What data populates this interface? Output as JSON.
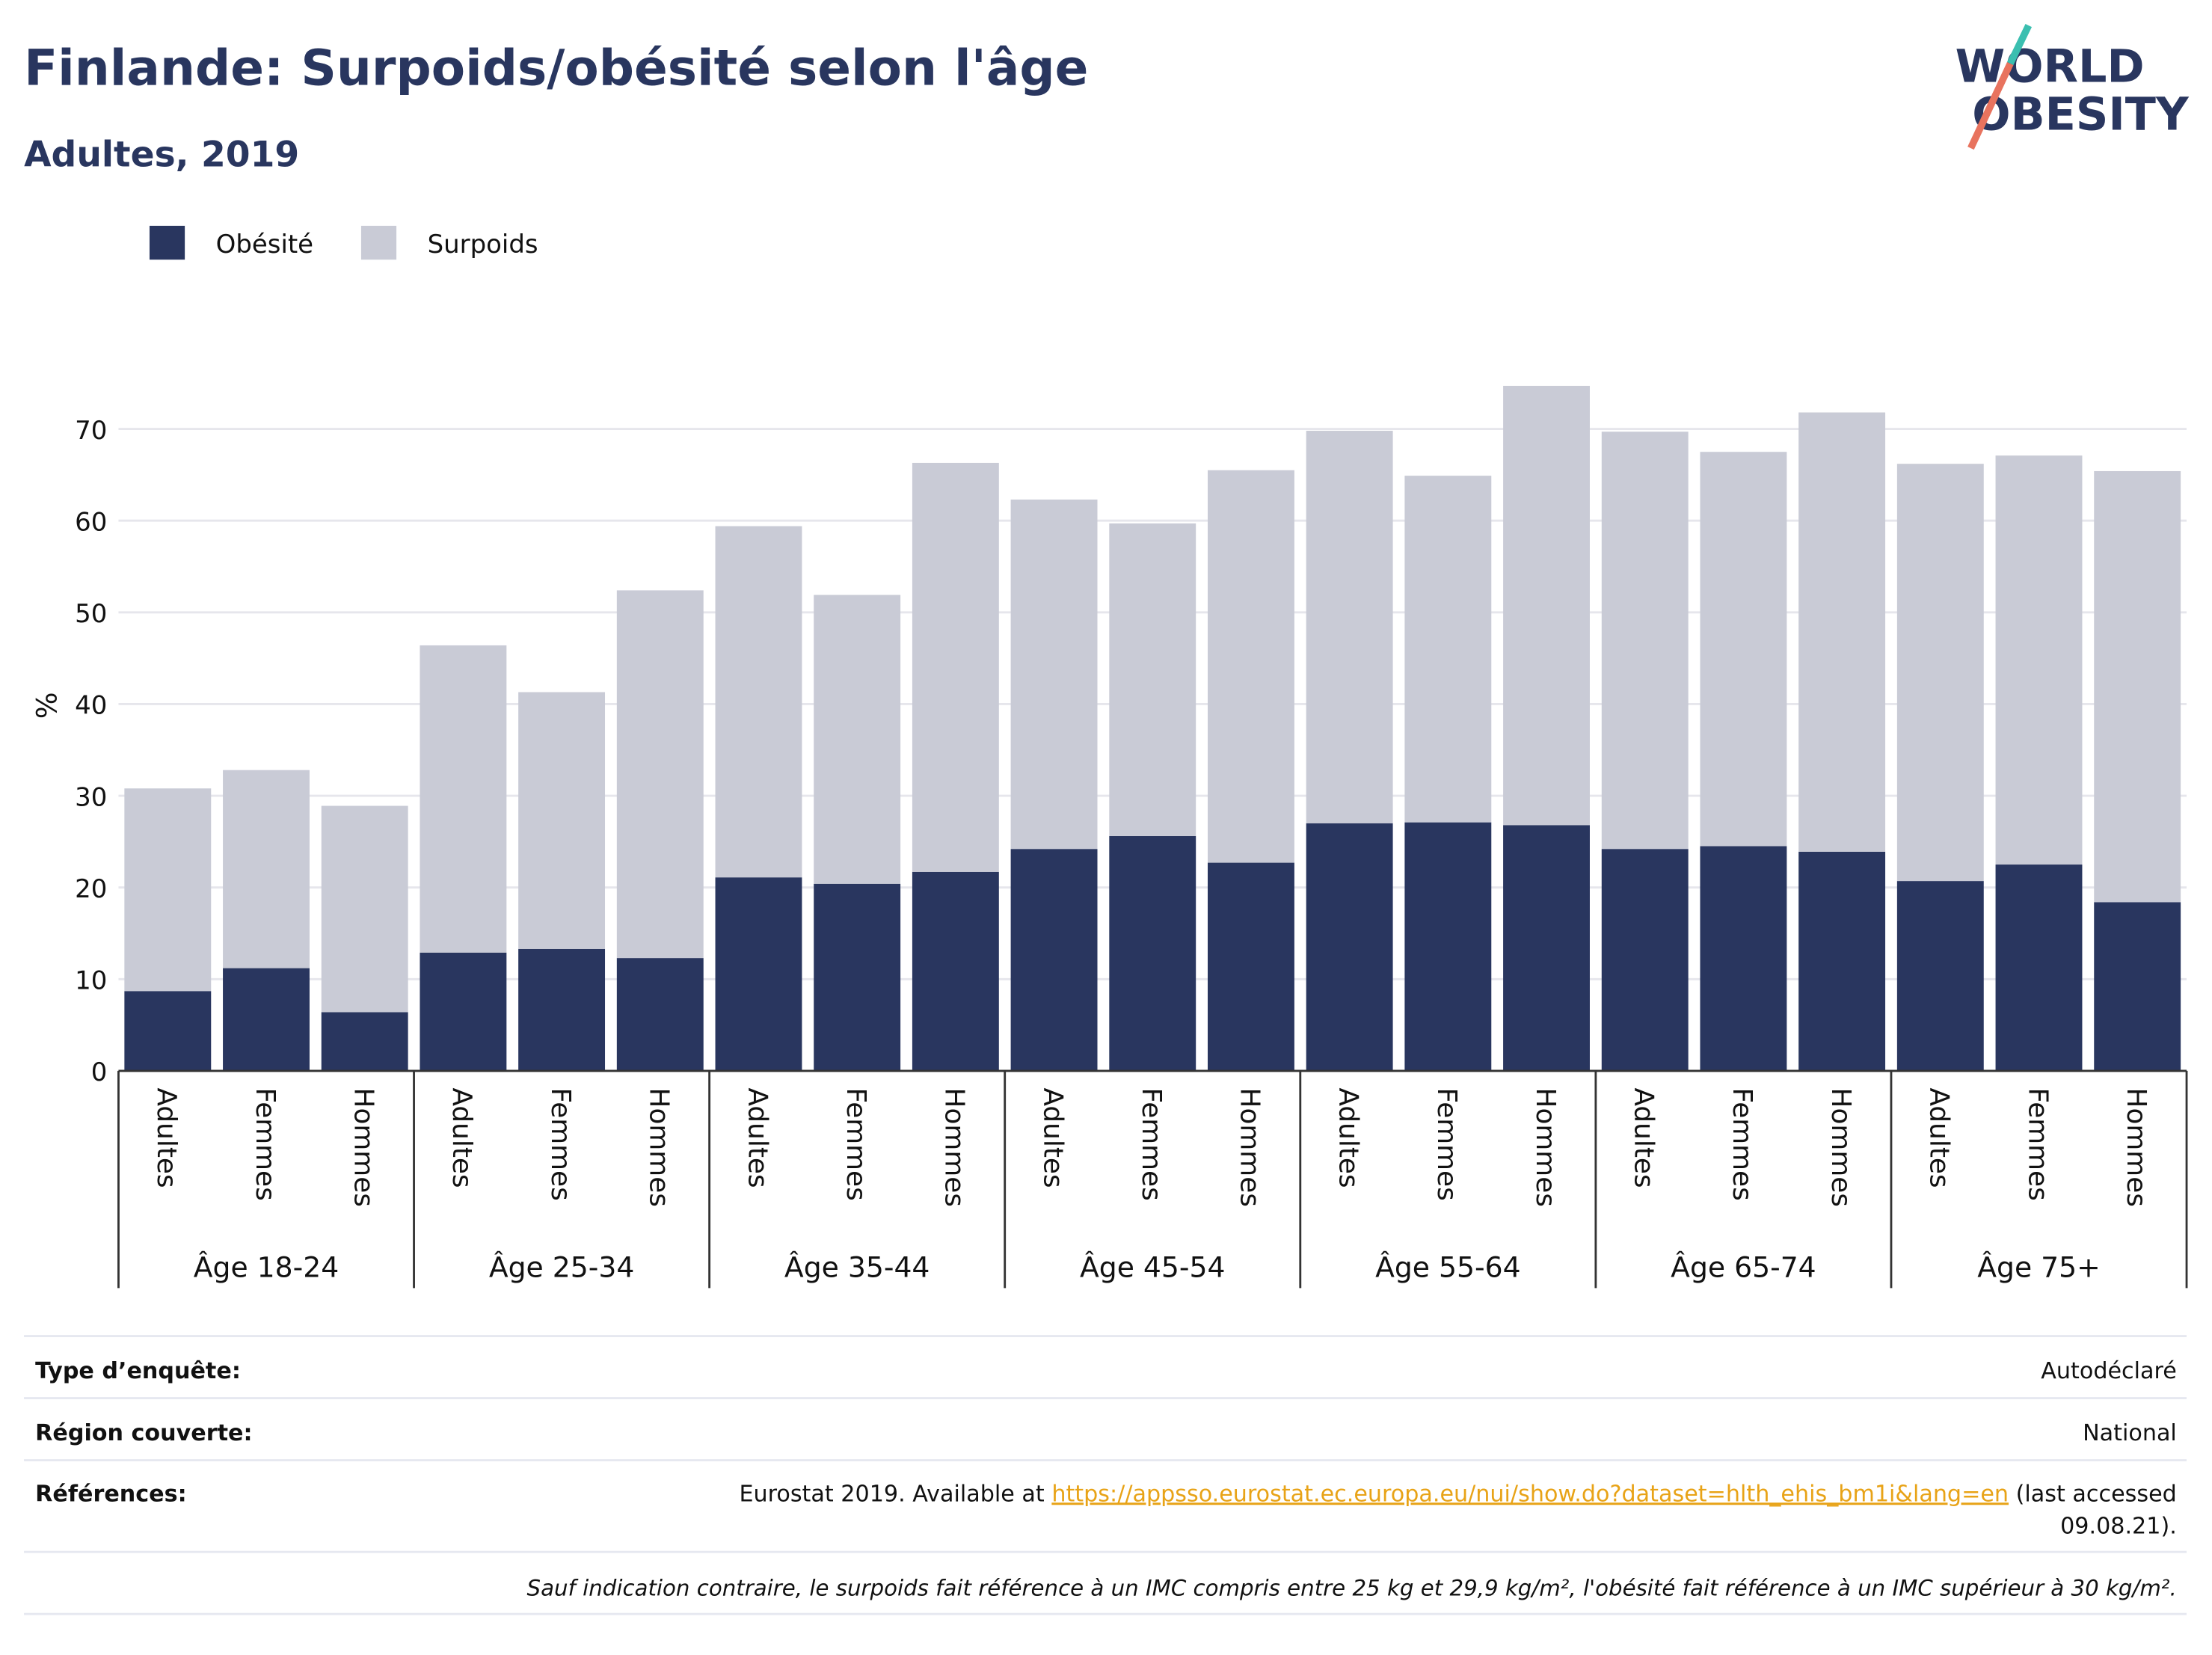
{
  "chart_data": {
    "type": "stacked_bar",
    "title": "Finlande: Surpoids/obésité selon l'âge",
    "subtitle": "Adultes, 2019",
    "y_label": "%",
    "logo": [
      "WORLD",
      "OBESITY"
    ],
    "groups": [
      "Âge 18-24",
      "Âge 25-34",
      "Âge 35-44",
      "Âge 45-54",
      "Âge 55-64",
      "Âge 65-74",
      "Âge 75+"
    ],
    "categories": [
      "Adultes",
      "Femmes",
      "Hommes",
      "Adultes",
      "Femmes",
      "Hommes",
      "Adultes",
      "Femmes",
      "Hommes",
      "Adultes",
      "Femmes",
      "Hommes",
      "Adultes",
      "Femmes",
      "Hommes",
      "Adultes",
      "Femmes",
      "Hommes",
      "Adultes",
      "Femmes",
      "Hommes"
    ],
    "series": [
      {
        "name": "Obésité",
        "color": "#29365f",
        "values": [
          8.7,
          11.2,
          6.4,
          12.9,
          13.3,
          12.3,
          21.1,
          20.4,
          21.7,
          24.2,
          25.6,
          22.7,
          27.0,
          27.1,
          26.8,
          24.2,
          24.5,
          23.9,
          20.7,
          22.5,
          18.4
        ]
      },
      {
        "name": "Surpoids",
        "color": "#c9cbd6",
        "values": [
          22.1,
          21.6,
          22.5,
          33.5,
          28.0,
          40.1,
          38.3,
          31.5,
          44.6,
          38.1,
          34.1,
          42.8,
          42.8,
          37.8,
          47.9,
          45.5,
          43.0,
          47.9,
          45.5,
          44.6,
          47.0
        ]
      }
    ],
    "ylim": [
      0,
      76
    ],
    "yticks": [
      0,
      10,
      20,
      30,
      40,
      50,
      60,
      70
    ],
    "grid": true,
    "legend": "top-left"
  },
  "footer": {
    "rows": [
      {
        "label": "Type d’enquête:",
        "value": "Autodéclaré"
      },
      {
        "label": "Région couverte:",
        "value": "National"
      }
    ],
    "references": {
      "label": "Références:",
      "parts": [
        "Eurostat 2019. Available at ",
        "https://appsso.eurostat.ec.europa.eu/nui/show.do?dataset=hlth_ehis_bm1i&lang=en",
        " (last accessed",
        "09.08.21)."
      ]
    },
    "note": "Sauf indication contraire, le surpoids fait référence à un IMC compris entre 25 kg et 29,9 kg/m², l'obésité fait référence à un IMC supérieur à 30 kg/m²."
  }
}
